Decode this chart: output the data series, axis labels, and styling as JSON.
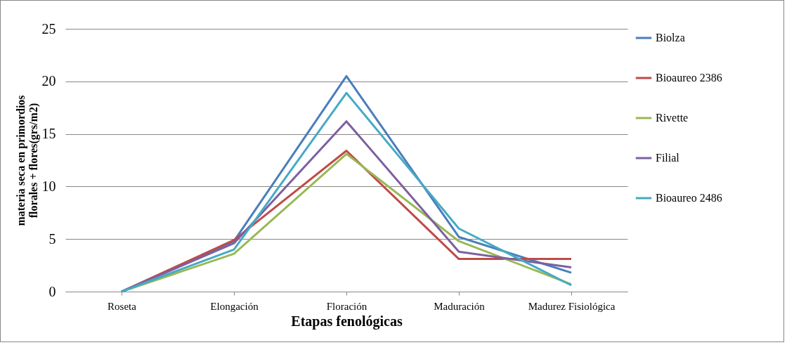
{
  "chart_data": {
    "type": "line",
    "xlabel": "Etapas fenológicas",
    "ylabel": "materia seca en primordios florales + flores(grs/m2)",
    "categories": [
      "Roseta",
      "Elongación",
      "Floración",
      "Maduración",
      "Madurez Fisiológica"
    ],
    "series": [
      {
        "name": "Biolza",
        "color": "#4a7ebb",
        "values": [
          0,
          4.8,
          20.5,
          5.2,
          1.8
        ]
      },
      {
        "name": "Bioaureo 2386",
        "color": "#be4b48",
        "values": [
          0,
          4.9,
          13.4,
          3.1,
          3.1
        ]
      },
      {
        "name": "Rivette",
        "color": "#98b954",
        "values": [
          0,
          3.6,
          13.1,
          4.8,
          0.7
        ]
      },
      {
        "name": "Filial",
        "color": "#7d60a0",
        "values": [
          0,
          4.6,
          16.2,
          3.8,
          2.3
        ]
      },
      {
        "name": "Bioaureo 2486",
        "color": "#46aac5",
        "values": [
          0,
          4.0,
          18.9,
          6.0,
          0.6
        ]
      }
    ],
    "ylim": [
      0,
      25
    ],
    "yticks": [
      0,
      5,
      10,
      15,
      20,
      25
    ],
    "grid": "y",
    "legend": "right",
    "marker": "none",
    "line_style": "solid"
  }
}
